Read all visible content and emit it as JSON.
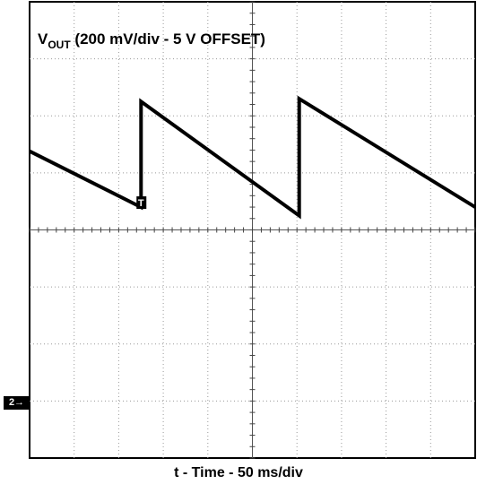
{
  "chart_data": {
    "type": "line",
    "title": "V",
    "title_subscript": "OUT",
    "title_rest": " (200 mV/div - 5 V OFFSET)",
    "xlabel": "t - Time - 50 ms/div",
    "ylabel": "",
    "grid": true,
    "divisions": {
      "x": 10,
      "y": 8
    },
    "xlim": [
      0,
      10
    ],
    "ylim": [
      -4,
      4
    ],
    "channel_marker": "2→",
    "trigger_marker": "T",
    "trigger_x_div": 2.5,
    "series": [
      {
        "name": "",
        "color": "#000000",
        "x": [
          0,
          2.5,
          2.5,
          6.05,
          6.05,
          10
        ],
        "y": [
          1.38,
          0.4,
          2.25,
          0.25,
          2.3,
          0.4
        ]
      }
    ]
  }
}
